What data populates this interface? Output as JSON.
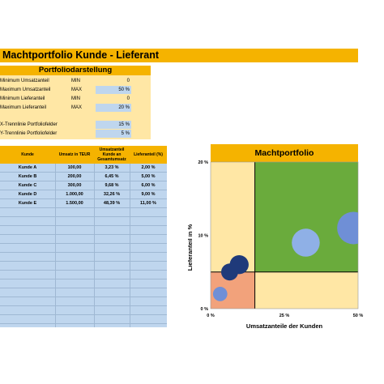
{
  "title": "Machtportfolio Kunde - Lieferant",
  "portfolio": {
    "header": "Portfoliodarstellung",
    "rows": [
      {
        "label": "Minimum Umsatzanteil",
        "mode": "MIN",
        "value": "0",
        "shaded": false
      },
      {
        "label": "Maximum Umsatzanteil",
        "mode": "MAX",
        "value": "50 %",
        "shaded": true
      },
      {
        "label": "Minimum Lieferanteil",
        "mode": "MIN",
        "value": "0",
        "shaded": false
      },
      {
        "label": "Maximum Lieferanteil",
        "mode": "MAX",
        "value": "20 %",
        "shaded": true
      },
      {
        "label": "X-Trennlinie Portfoliofelder",
        "mode": "",
        "value": "15 %",
        "shaded": true
      },
      {
        "label": "Y-Trennlinie Portfoliofelder",
        "mode": "",
        "value": "5 %",
        "shaded": true
      }
    ]
  },
  "table": {
    "headers": [
      "Kunde",
      "Umsatz in TEUR",
      "Umsatzanteil Kunde an Gesamtumsatz",
      "Lieferanteil (%)"
    ],
    "rows": [
      [
        "Kunde A",
        "100,00",
        "3,23 %",
        "2,00 %"
      ],
      [
        "Kunde B",
        "200,00",
        "6,45 %",
        "5,00 %"
      ],
      [
        "Kunde C",
        "300,00",
        "9,68 %",
        "6,00 %"
      ],
      [
        "Kunde D",
        "1.000,00",
        "32,26 %",
        "9,00 %"
      ],
      [
        "Kunde E",
        "1.500,00",
        "48,39 %",
        "11,00 %"
      ]
    ],
    "empty_rows": 13
  },
  "chart_data": {
    "type": "scatter",
    "title": "Machtportfolio",
    "xlabel": "Umsatzanteile der Kunden",
    "ylabel": "Lieferanteil in %",
    "xlim": [
      0,
      50
    ],
    "ylim": [
      0,
      20
    ],
    "x_tick_labels": [
      "0 %",
      "25 %",
      "50 %"
    ],
    "y_tick_labels": [
      "0 %",
      "10 %",
      "20 %"
    ],
    "x_divider": 15,
    "y_divider": 5,
    "quadrant_colors": {
      "bottom_left": "#f2a27b",
      "top_left": "#ffe7a5",
      "bottom_right": "#ffe7a5",
      "top_right": "#6aab3c"
    },
    "points": [
      {
        "x": 3.23,
        "y": 2.0,
        "size": 100,
        "color": "#6f8fd6"
      },
      {
        "x": 6.45,
        "y": 5.0,
        "size": 200,
        "color": "#1f3a7a"
      },
      {
        "x": 9.68,
        "y": 6.0,
        "size": 300,
        "color": "#1f3a7a"
      },
      {
        "x": 32.26,
        "y": 9.0,
        "size": 1000,
        "color": "#8fb0e6"
      },
      {
        "x": 48.39,
        "y": 11.0,
        "size": 1500,
        "color": "#6f8fd6"
      }
    ]
  }
}
